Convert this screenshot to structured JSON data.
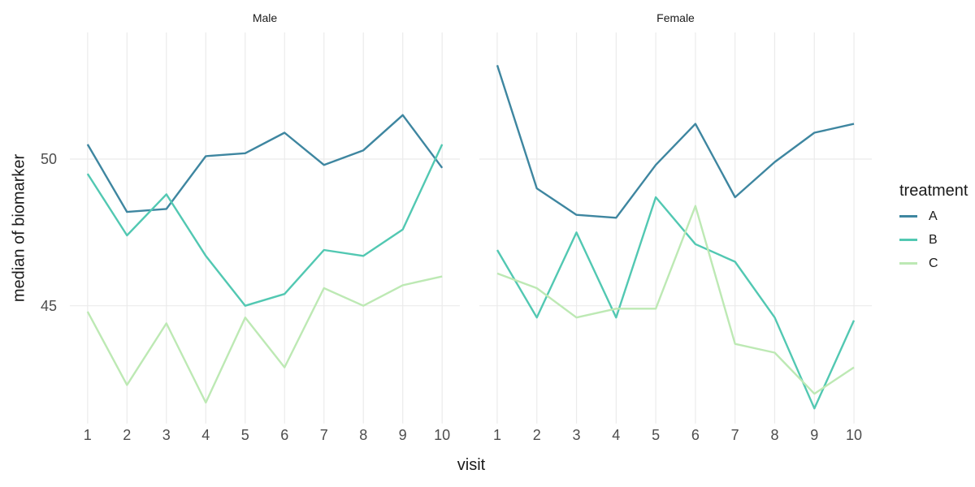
{
  "chart_data": {
    "type": "line",
    "title": "",
    "xlabel": "visit",
    "ylabel": "median of biomarker",
    "facet_variable_values": [
      "Male",
      "Female"
    ],
    "x": [
      1,
      2,
      3,
      4,
      5,
      6,
      7,
      8,
      9,
      10
    ],
    "yticks": [
      45,
      50
    ],
    "ylim": [
      41.0,
      54.3
    ],
    "grid": "major-only",
    "legend": {
      "title": "treatment",
      "position": "right",
      "entries": [
        "A",
        "B",
        "C"
      ]
    },
    "palette": {
      "A": "#3E86A0",
      "B": "#52C8B2",
      "C": "#BDE9B4"
    },
    "style_colors": {
      "background": "#FFFFFF",
      "gridline": "#EBEBEB",
      "tick_text": "#4D4D4D",
      "title_text": "#1A1A1A"
    },
    "facets": [
      {
        "name": "Male",
        "series": [
          {
            "name": "A",
            "values": [
              50.5,
              48.2,
              48.3,
              50.1,
              50.2,
              50.9,
              49.8,
              50.3,
              51.5,
              49.7
            ]
          },
          {
            "name": "B",
            "values": [
              49.5,
              47.4,
              48.8,
              46.7,
              45.0,
              45.4,
              46.9,
              46.7,
              47.6,
              50.5
            ]
          },
          {
            "name": "C",
            "values": [
              44.8,
              42.3,
              44.4,
              41.7,
              44.6,
              42.9,
              45.6,
              45.0,
              45.7,
              46.0
            ]
          }
        ]
      },
      {
        "name": "Female",
        "series": [
          {
            "name": "A",
            "values": [
              53.2,
              49.0,
              48.1,
              48.0,
              49.8,
              51.2,
              48.7,
              49.9,
              50.9,
              51.2
            ]
          },
          {
            "name": "B",
            "values": [
              46.9,
              44.6,
              47.5,
              44.6,
              48.7,
              47.1,
              46.5,
              44.6,
              41.5,
              44.5
            ]
          },
          {
            "name": "C",
            "values": [
              46.1,
              45.6,
              44.6,
              44.9,
              44.9,
              48.4,
              43.7,
              43.4,
              42.0,
              42.9
            ]
          }
        ]
      }
    ]
  }
}
